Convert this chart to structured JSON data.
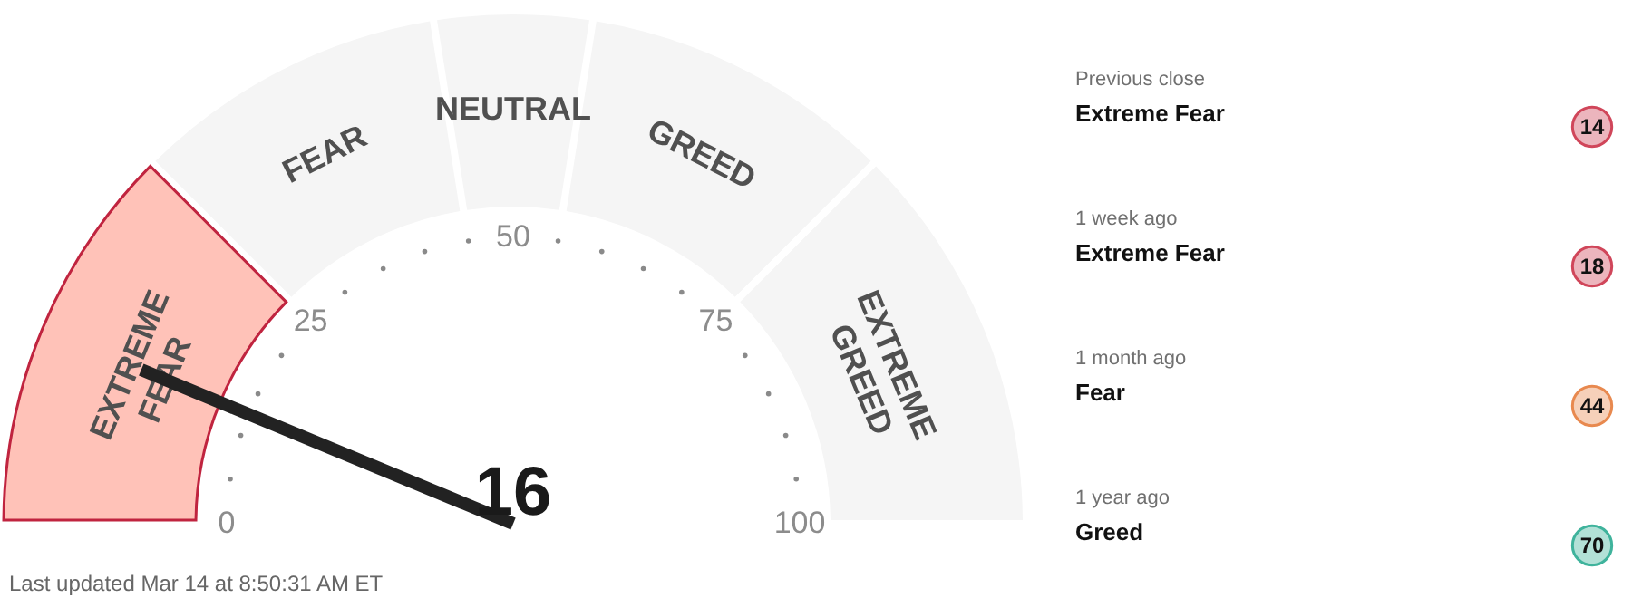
{
  "chart_data": [
    {
      "type": "donut",
      "categories": [
        "EXTREME FEAR",
        "FEAR",
        "NEUTRAL",
        "GREED",
        "EXTREME GREED"
      ],
      "values": [
        25,
        20,
        10,
        20,
        25
      ],
      "colors": [
        "#ffc2b8",
        "#f5f5f5",
        "#f5f5f5",
        "#f5f5f5",
        "#f5f5f5"
      ],
      "needle": "EXTREME FEAR",
      "annotations": [
        "0",
        "25",
        "50",
        "75",
        "100",
        "16",
        "Last updated Mar 14 at 8:50:31 AM ET"
      ]
    },
    {
      "type": "other",
      "annotations": [
        "Previous close",
        "Extreme Fear",
        "14",
        "1 week ago",
        "Extreme Fear",
        "18",
        "1 month ago",
        "Fear",
        "44",
        "1 year ago",
        "Greed",
        "70"
      ],
      "colors": [
        "#d0465a",
        "#d0465a",
        "#e8894f",
        "#3fb39c"
      ]
    }
  ]
}
